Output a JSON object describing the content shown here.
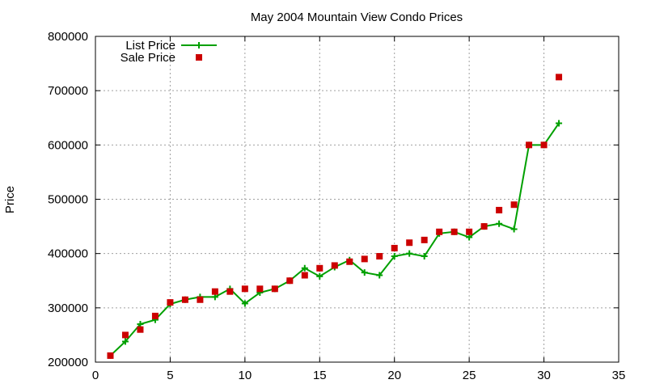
{
  "chart_data": {
    "type": "line",
    "title": "May 2004 Mountain View Condo Prices",
    "xlabel": "",
    "ylabel": "Price",
    "xlim": [
      0,
      35
    ],
    "ylim": [
      200000,
      800000
    ],
    "x_ticks": [
      0,
      5,
      10,
      15,
      20,
      25,
      30,
      35
    ],
    "y_ticks": [
      200000,
      300000,
      400000,
      500000,
      600000,
      700000,
      800000
    ],
    "grid": true,
    "legend_position": "top-left",
    "series": [
      {
        "name": "List Price",
        "style": "line-with-plus-markers",
        "color": "#00a000",
        "x": [
          1,
          2,
          3,
          4,
          5,
          6,
          7,
          8,
          9,
          10,
          11,
          12,
          13,
          14,
          15,
          16,
          17,
          18,
          19,
          20,
          21,
          22,
          23,
          24,
          25,
          26,
          27,
          28,
          29,
          30,
          31
        ],
        "y": [
          212000,
          238000,
          270000,
          278000,
          307000,
          315000,
          320000,
          320000,
          335000,
          308000,
          328000,
          335000,
          350000,
          373000,
          358000,
          375000,
          388000,
          365000,
          360000,
          395000,
          400000,
          395000,
          437000,
          440000,
          430000,
          450000,
          455000,
          445000,
          600000,
          600000,
          640000
        ]
      },
      {
        "name": "Sale Price",
        "style": "square-markers",
        "color": "#cc0000",
        "x": [
          1,
          2,
          3,
          4,
          5,
          6,
          7,
          8,
          9,
          10,
          11,
          12,
          13,
          14,
          15,
          16,
          17,
          18,
          19,
          20,
          21,
          22,
          23,
          24,
          25,
          26,
          27,
          28,
          29,
          30,
          31
        ],
        "y": [
          212000,
          250000,
          260000,
          285000,
          310000,
          315000,
          315000,
          330000,
          330000,
          335000,
          335000,
          335000,
          350000,
          360000,
          373000,
          378000,
          385000,
          390000,
          395000,
          410000,
          420000,
          425000,
          440000,
          440000,
          440000,
          450000,
          480000,
          490000,
          600000,
          600000,
          725000
        ]
      }
    ]
  }
}
